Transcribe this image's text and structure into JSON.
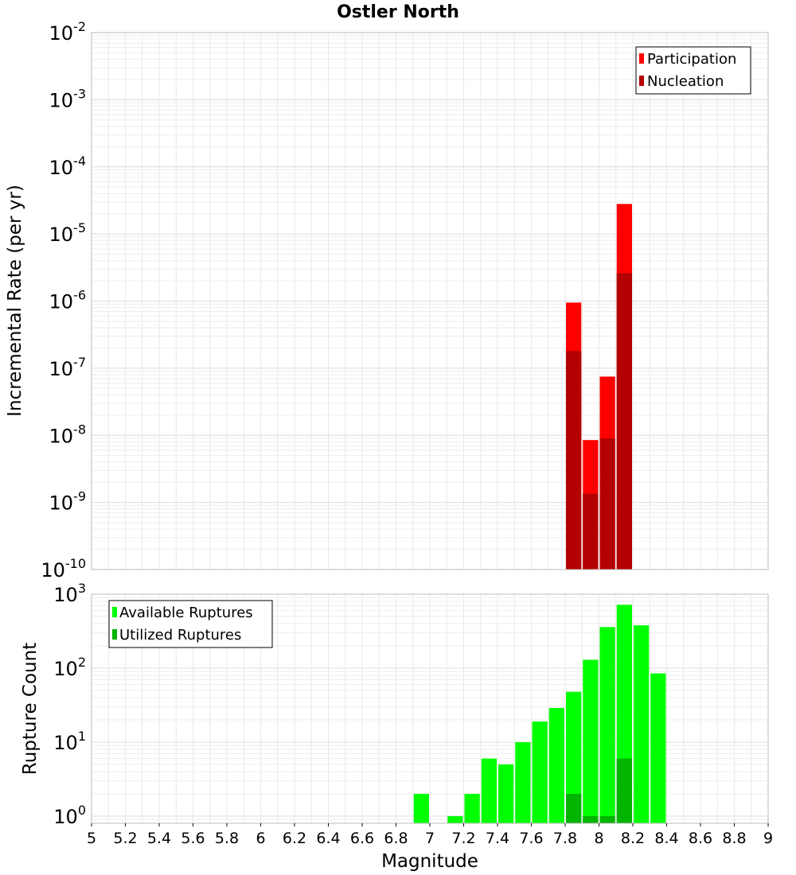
{
  "chart_data": [
    {
      "type": "bar",
      "title": "Ostler North",
      "ylabel": "Incremental Rate (per yr)",
      "xlabel": "",
      "y_scale": "log",
      "ylim": [
        1e-10,
        0.01
      ],
      "xlim": [
        5,
        9
      ],
      "y_ticks": [
        {
          "base": "10",
          "exp": "-10",
          "value": 1e-10
        },
        {
          "base": "10",
          "exp": "-9",
          "value": 1e-09
        },
        {
          "base": "10",
          "exp": "-8",
          "value": 1e-08
        },
        {
          "base": "10",
          "exp": "-7",
          "value": 1e-07
        },
        {
          "base": "10",
          "exp": "-6",
          "value": 1e-06
        },
        {
          "base": "10",
          "exp": "-5",
          "value": 1e-05
        },
        {
          "base": "10",
          "exp": "-4",
          "value": 0.0001
        },
        {
          "base": "10",
          "exp": "-3",
          "value": 0.001
        },
        {
          "base": "10",
          "exp": "-2",
          "value": 0.01
        }
      ],
      "grid": true,
      "legend_position": "top-right",
      "series": [
        {
          "name": "Participation",
          "color": "#ff0000",
          "points": [
            {
              "x": 7.85,
              "y": 9.5e-07
            },
            {
              "x": 7.95,
              "y": 8.5e-09
            },
            {
              "x": 8.05,
              "y": 7.5e-08
            },
            {
              "x": 8.15,
              "y": 2.8e-05
            }
          ]
        },
        {
          "name": "Nucleation",
          "color": "#b40000",
          "points": [
            {
              "x": 7.85,
              "y": 1.8e-07
            },
            {
              "x": 7.95,
              "y": 1.35e-09
            },
            {
              "x": 8.05,
              "y": 9e-09
            },
            {
              "x": 8.15,
              "y": 2.6e-06
            }
          ]
        }
      ]
    },
    {
      "type": "bar",
      "title": "",
      "ylabel": "Rupture Count",
      "xlabel": "Magnitude",
      "y_scale": "log",
      "ylim": [
        0.8,
        1000
      ],
      "xlim": [
        5,
        9
      ],
      "y_ticks": [
        {
          "base": "10",
          "exp": "0",
          "value": 1
        },
        {
          "base": "10",
          "exp": "1",
          "value": 10
        },
        {
          "base": "10",
          "exp": "2",
          "value": 100
        },
        {
          "base": "10",
          "exp": "3",
          "value": 1000
        }
      ],
      "x_tick_labels": [
        "5",
        "5.2",
        "5.4",
        "5.6",
        "5.8",
        "6",
        "6.2",
        "6.4",
        "6.6",
        "6.8",
        "7",
        "7.2",
        "7.4",
        "7.6",
        "7.8",
        "8",
        "8.2",
        "8.4",
        "8.6",
        "8.8",
        "9"
      ],
      "x_ticks": [
        5,
        5.2,
        5.4,
        5.6,
        5.8,
        6,
        6.2,
        6.4,
        6.6,
        6.8,
        7,
        7.2,
        7.4,
        7.6,
        7.8,
        8,
        8.2,
        8.4,
        8.6,
        8.8,
        9
      ],
      "grid": true,
      "legend_position": "top-left",
      "series": [
        {
          "name": "Available Ruptures",
          "color": "#00ff00",
          "points": [
            {
              "x": 6.95,
              "y": 2
            },
            {
              "x": 7.15,
              "y": 1
            },
            {
              "x": 7.25,
              "y": 2
            },
            {
              "x": 7.35,
              "y": 6
            },
            {
              "x": 7.45,
              "y": 5
            },
            {
              "x": 7.55,
              "y": 10
            },
            {
              "x": 7.65,
              "y": 19
            },
            {
              "x": 7.75,
              "y": 29
            },
            {
              "x": 7.85,
              "y": 48
            },
            {
              "x": 7.95,
              "y": 130
            },
            {
              "x": 8.05,
              "y": 360
            },
            {
              "x": 8.15,
              "y": 720
            },
            {
              "x": 8.25,
              "y": 380
            },
            {
              "x": 8.35,
              "y": 85
            }
          ]
        },
        {
          "name": "Utilized Ruptures",
          "color": "#00b400",
          "points": [
            {
              "x": 7.85,
              "y": 2
            },
            {
              "x": 7.95,
              "y": 1
            },
            {
              "x": 8.05,
              "y": 1
            },
            {
              "x": 8.15,
              "y": 6
            }
          ]
        }
      ]
    }
  ]
}
